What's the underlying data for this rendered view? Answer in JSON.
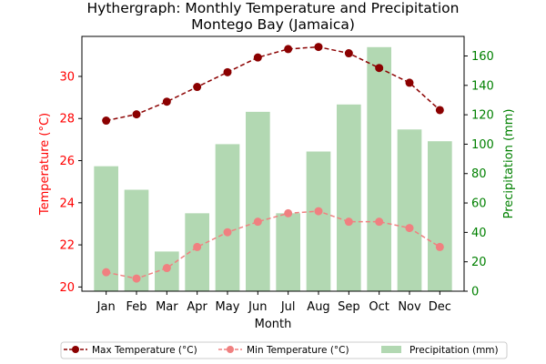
{
  "chart_data": {
    "type": "bar+line",
    "title": "Hythergraph: Monthly Temperature and Precipitation",
    "subtitle": "Montego Bay (Jamaica)",
    "xlabel": "Month",
    "ylabel_left": "Temperature (°C)",
    "ylabel_right": "Precipitation (mm)",
    "categories": [
      "Jan",
      "Feb",
      "Mar",
      "Apr",
      "May",
      "Jun",
      "Jul",
      "Aug",
      "Sep",
      "Oct",
      "Nov",
      "Dec"
    ],
    "ylim_left": [
      19.8,
      31.9
    ],
    "ylim_right": [
      0,
      173.3
    ],
    "yticks_left": [
      20,
      22,
      24,
      26,
      28,
      30
    ],
    "yticks_right": [
      0,
      20,
      40,
      60,
      80,
      100,
      120,
      140,
      160
    ],
    "series": [
      {
        "name": "Max Temperature (°C)",
        "kind": "line",
        "axis": "left",
        "color": "#8b0000",
        "values": [
          27.9,
          28.2,
          28.8,
          29.5,
          30.2,
          30.9,
          31.3,
          31.4,
          31.1,
          30.4,
          29.7,
          28.4
        ]
      },
      {
        "name": "Min Temperature (°C)",
        "kind": "line",
        "axis": "left",
        "color": "#f08080",
        "values": [
          20.7,
          20.4,
          20.9,
          21.9,
          22.6,
          23.1,
          23.5,
          23.6,
          23.1,
          23.1,
          22.8,
          21.9
        ]
      },
      {
        "name": "Precipitation (mm)",
        "kind": "bar",
        "axis": "right",
        "color": "#b2d8b2",
        "values": [
          85,
          69,
          27,
          53,
          100,
          122,
          53,
          95,
          127,
          166,
          110,
          102
        ]
      }
    ],
    "colors": {
      "left_axis": "#ff0000",
      "right_axis": "#008000"
    },
    "grid": false,
    "legend_position": "bottom"
  }
}
